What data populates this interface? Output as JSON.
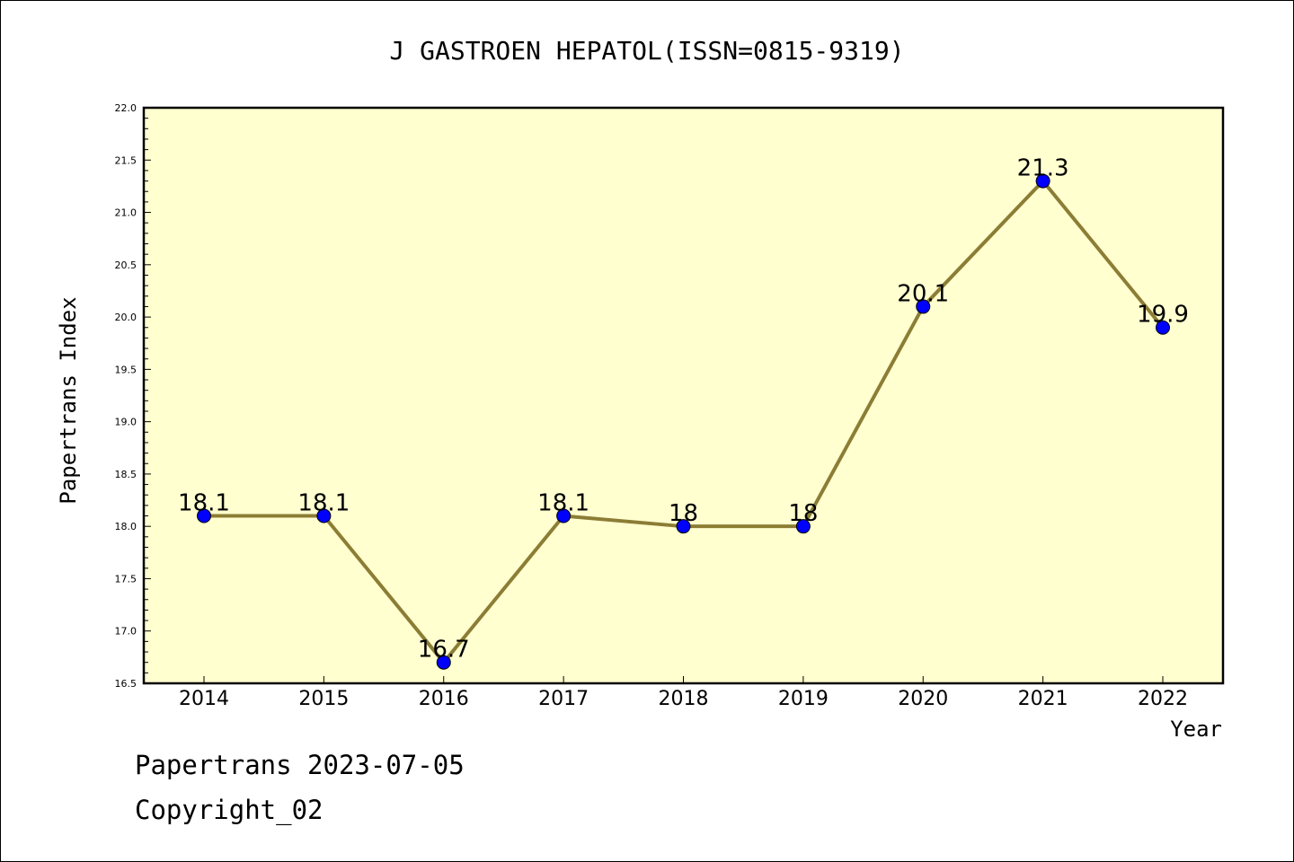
{
  "chart_data": {
    "type": "line",
    "title": "J GASTROEN HEPATOL(ISSN=0815-9319)",
    "xlabel": "Year",
    "ylabel": "Papertrans Index",
    "categories": [
      "2014",
      "2015",
      "2016",
      "2017",
      "2018",
      "2019",
      "2020",
      "2021",
      "2022"
    ],
    "series": [
      {
        "values": [
          18.1,
          18.1,
          16.7,
          18.1,
          18.0,
          18.0,
          20.1,
          21.3,
          19.9
        ],
        "data_labels": [
          "18.1",
          "18.1",
          "16.7",
          "18.1",
          "18",
          "18",
          "20.1",
          "21.3",
          "19.9"
        ]
      }
    ],
    "ylim": [
      16.5,
      22.0
    ],
    "yticks": [
      "16.5",
      "17.0",
      "17.5",
      "18.0",
      "18.5",
      "19.0",
      "19.5",
      "20.0",
      "20.5",
      "21.0",
      "21.5",
      "22.0"
    ],
    "grid": false,
    "legend": "none",
    "colors": {
      "plot_background": "#ffffd0",
      "line": "#8c7d35",
      "marker": "#0000ff"
    }
  },
  "footer": {
    "line1": "Papertrans 2023-07-05",
    "line2": "Copyright_02"
  }
}
